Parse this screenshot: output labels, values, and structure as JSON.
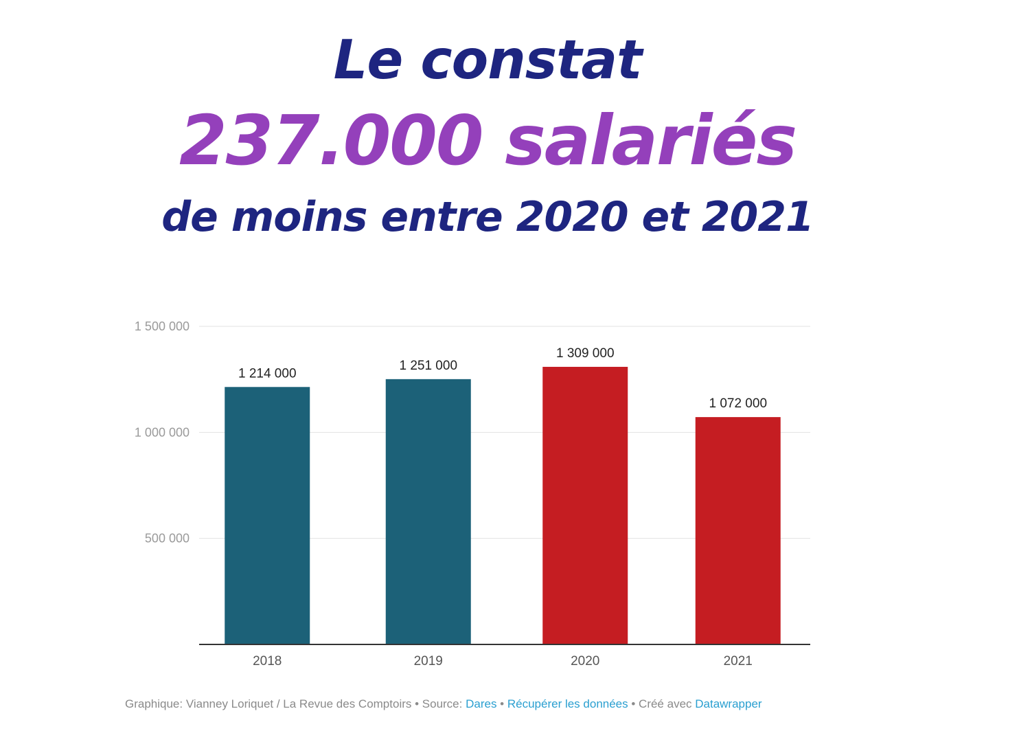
{
  "headline": {
    "line1": "Le constat",
    "line2": "237.000 salariés",
    "line3": "de moins entre 2020 et 2021"
  },
  "colors": {
    "headline_dark": "#1e2580",
    "headline_accent": "#9440bb",
    "bar_teal": "#1c6178",
    "bar_red": "#c51d22",
    "gridline": "#e2e2e2",
    "axis": "#333333",
    "tick_text": "#9a9a9a",
    "xtick_text": "#555555",
    "value_label": "#222222",
    "footer_text": "#8a8a8a",
    "link": "#2a9fd0"
  },
  "chart_data": {
    "type": "bar",
    "title": "",
    "xlabel": "",
    "ylabel": "",
    "categories": [
      "2018",
      "2019",
      "2020",
      "2021"
    ],
    "values": [
      1214000,
      1251000,
      1309000,
      1072000
    ],
    "value_labels": [
      "1 214 000",
      "1 251 000",
      "1 309 000",
      "1 072 000"
    ],
    "bar_colors": [
      "#1c6178",
      "#1c6178",
      "#c51d22",
      "#c51d22"
    ],
    "ylim": [
      0,
      1500000
    ],
    "yticks": [
      500000,
      1000000,
      1500000
    ],
    "ytick_labels": [
      "500 000",
      "1 000 000",
      "1 500 000"
    ],
    "grid": true,
    "legend": "none"
  },
  "footer": {
    "credit": "Graphique: Vianney Loriquet / La Revue des Comptoirs • Source: ",
    "source_link": "Dares",
    "sep1": " • ",
    "download_link": "Récupérer les données",
    "sep2": " • Créé avec ",
    "tool_link": "Datawrapper"
  }
}
